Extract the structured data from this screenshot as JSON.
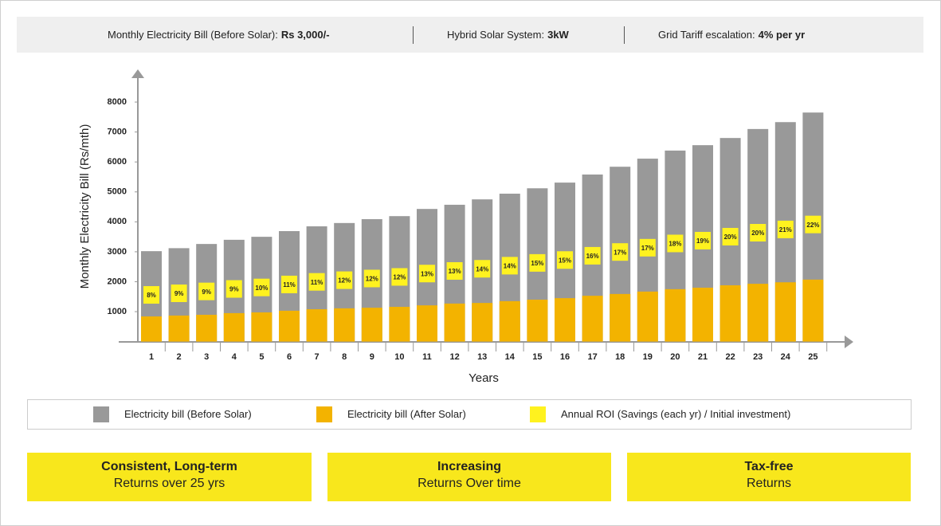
{
  "header": [
    {
      "label": "Monthly Electricity Bill (Before Solar):",
      "value": "Rs 3,000/-"
    },
    {
      "label": "Hybrid Solar System:",
      "value": "3kW"
    },
    {
      "label": "Grid Tariff escalation:",
      "value": "4% per yr"
    }
  ],
  "chart_data": {
    "type": "bar",
    "y_label": "Monthly Electricity Bill (Rs/mth)",
    "x_label": "Years",
    "categories": [
      "1",
      "2",
      "3",
      "4",
      "5",
      "6",
      "7",
      "8",
      "9",
      "10",
      "11",
      "12",
      "13",
      "14",
      "15",
      "16",
      "17",
      "18",
      "19",
      "20",
      "21",
      "22",
      "23",
      "24",
      "25"
    ],
    "ylim": [
      0,
      9000
    ],
    "yticks": [
      1000,
      2000,
      3000,
      4000,
      5000,
      6000,
      7000,
      8000
    ],
    "series": [
      {
        "name": "Electricity bill (Before Solar)",
        "color": "#999999",
        "values": [
          3020,
          3120,
          3260,
          3400,
          3500,
          3690,
          3850,
          3960,
          4090,
          4190,
          4430,
          4570,
          4750,
          4940,
          5120,
          5310,
          5580,
          5840,
          6110,
          6380,
          6560,
          6800,
          7100,
          7330,
          7650
        ]
      },
      {
        "name": "Electricity bill (After Solar)",
        "color": "#f3b300",
        "values": [
          840,
          870,
          895,
          950,
          975,
          1030,
          1080,
          1110,
          1130,
          1160,
          1210,
          1270,
          1290,
          1350,
          1400,
          1450,
          1530,
          1590,
          1670,
          1750,
          1800,
          1880,
          1930,
          1980,
          2070
        ]
      },
      {
        "name": "Annual ROI (Savings (each yr) / Initial investment)",
        "color": "#fff21f",
        "values": [
          8,
          9,
          9,
          9,
          10,
          11,
          11,
          12,
          12,
          12,
          13,
          13,
          14,
          14,
          15,
          15,
          16,
          17,
          17,
          18,
          19,
          20,
          20,
          21,
          22
        ],
        "value_labels": [
          "8%",
          "9%",
          "9%",
          "9%",
          "10%",
          "11%",
          "11%",
          "12%",
          "12%",
          "12%",
          "13%",
          "13%",
          "14%",
          "14%",
          "15%",
          "15%",
          "16%",
          "17%",
          "17%",
          "18%",
          "19%",
          "20%",
          "20%",
          "21%",
          "22%"
        ]
      }
    ]
  },
  "cards": [
    {
      "title": "Consistent, Long-term",
      "subtitle": "Returns over 25 yrs"
    },
    {
      "title": "Increasing",
      "subtitle": "Returns Over time"
    },
    {
      "title": "Tax-free",
      "subtitle": "Returns"
    }
  ]
}
